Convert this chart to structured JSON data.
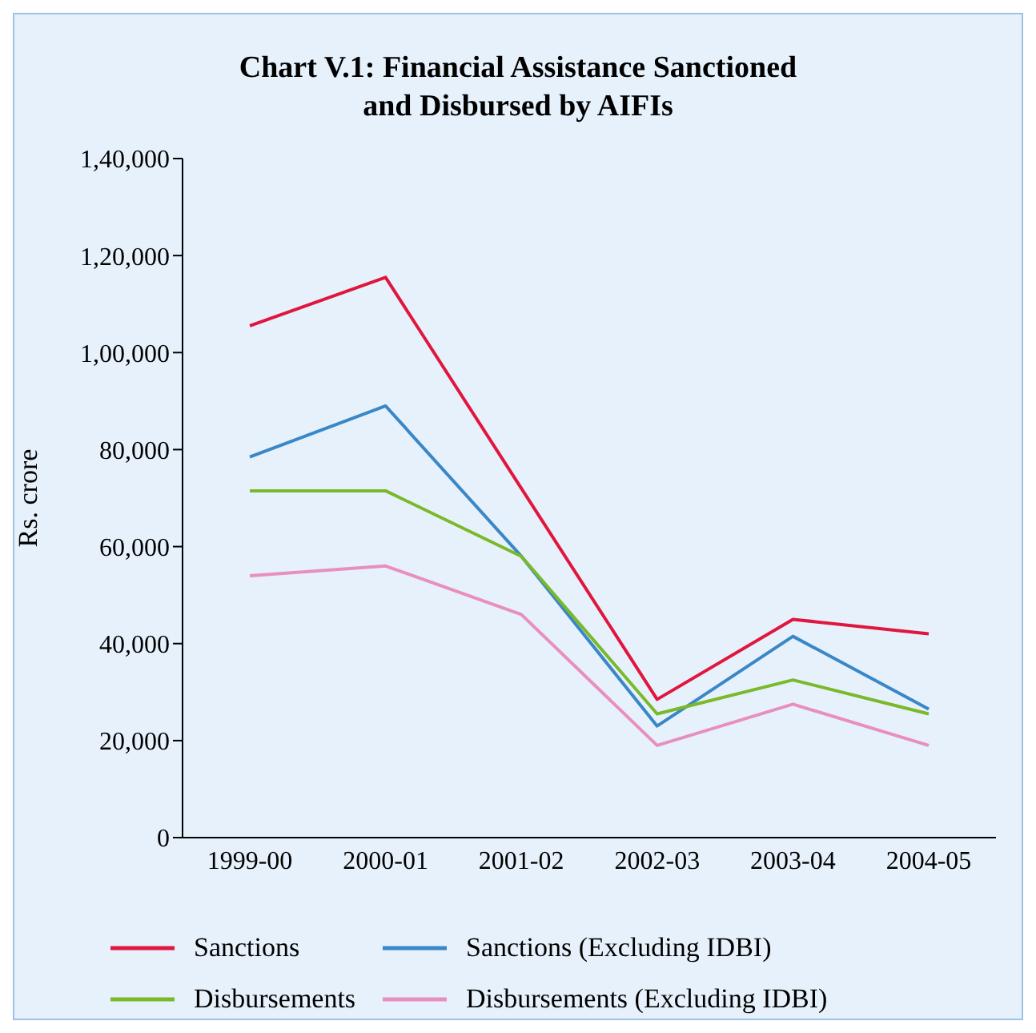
{
  "chart_data": {
    "type": "line",
    "title": "Chart V.1: Financial Assistance Sanctioned and Disbursed by AIFIs",
    "ylabel": "Rs. crore",
    "categories": [
      "1999-00",
      "2000-01",
      "2001-02",
      "2002-03",
      "2003-04",
      "2004-05"
    ],
    "series": [
      {
        "name": "Sanctions",
        "color": "#e0163e",
        "values": [
          105500,
          115500,
          72000,
          28500,
          45000,
          42000
        ]
      },
      {
        "name": "Sanctions (Excluding IDBI)",
        "color": "#3a87c8",
        "values": [
          78500,
          89000,
          58000,
          23000,
          41500,
          26500
        ]
      },
      {
        "name": "Disbursements",
        "color": "#7ab929",
        "values": [
          71500,
          71500,
          58000,
          25500,
          32500,
          25500
        ]
      },
      {
        "name": "Disbursements (Excluding IDBI)",
        "color": "#e88fbf",
        "values": [
          54000,
          56000,
          46000,
          19000,
          27500,
          19000
        ]
      }
    ],
    "ylim": [
      0,
      140000
    ],
    "yticks": [
      0,
      {
        "value": 20000,
        "label": "20,000"
      },
      {
        "value": 40000,
        "label": "40,000"
      },
      {
        "value": 60000,
        "label": "60,000"
      },
      {
        "value": 80000,
        "label": "80,000"
      },
      {
        "value": 100000,
        "label": "1,00,000"
      },
      {
        "value": 120000,
        "label": "1,20,000"
      },
      {
        "value": 140000,
        "label": "1,40,000"
      }
    ],
    "grid": false,
    "legend": "bottom",
    "marker": "none",
    "line_style": "solid"
  }
}
